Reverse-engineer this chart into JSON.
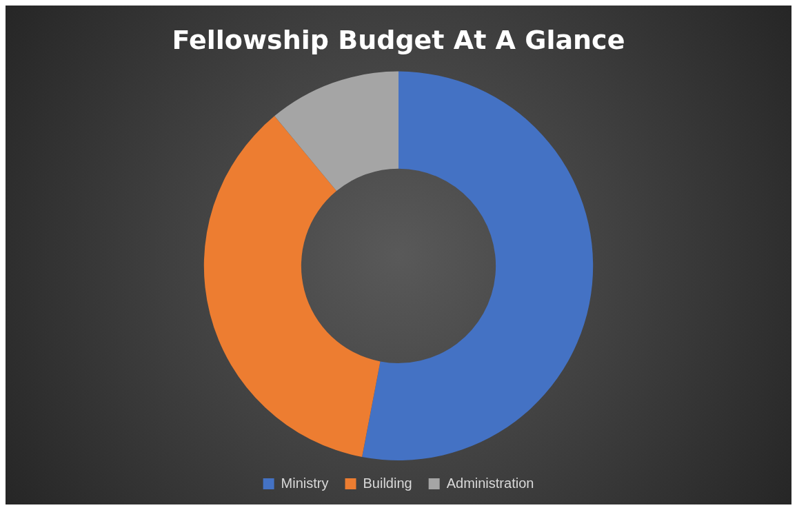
{
  "chart_data": {
    "type": "donut",
    "title": "Fellowship Budget At A Glance",
    "categories": [
      "Ministry",
      "Building",
      "Administration"
    ],
    "values": [
      53,
      36,
      11
    ],
    "colors": [
      "#4472c4",
      "#ed7d31",
      "#a5a5a5"
    ],
    "legend": "bottom"
  }
}
